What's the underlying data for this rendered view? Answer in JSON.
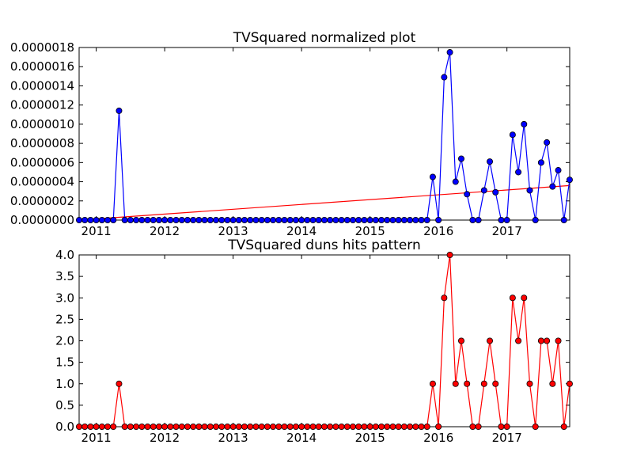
{
  "chart_data": [
    {
      "type": "line",
      "title": "TVSquared normalized plot",
      "xlabel": "",
      "ylabel": "",
      "x_tick_labels": [
        "2011",
        "2012",
        "2013",
        "2014",
        "2015",
        "2016",
        "2017"
      ],
      "x_tick_values": [
        2011,
        2012,
        2013,
        2014,
        2015,
        2016,
        2017
      ],
      "xlim": [
        2010.75,
        2017.917
      ],
      "y_tick_labels": [
        "0.0000000",
        "0.0000002",
        "0.0000004",
        "0.0000006",
        "0.0000008",
        "0.0000010",
        "0.0000012",
        "0.0000014",
        "0.0000016",
        "0.0000018"
      ],
      "y_tick_values": [
        0,
        2e-07,
        4e-07,
        6e-07,
        8e-07,
        1e-06,
        1.2e-06,
        1.4e-06,
        1.6e-06,
        1.8e-06
      ],
      "ylim": [
        0,
        1.8e-06
      ],
      "grid": false,
      "colors": {
        "series": "#0000ff",
        "trend": "#ff0000"
      },
      "series": [
        {
          "x_start": 2010.75,
          "x_step": 0.08333,
          "values": [
            0,
            0,
            0,
            0,
            0,
            0,
            0,
            1.14e-06,
            0,
            0,
            0,
            0,
            0,
            0,
            0,
            0,
            0,
            0,
            0,
            0,
            0,
            0,
            0,
            0,
            0,
            0,
            0,
            0,
            0,
            0,
            0,
            0,
            0,
            0,
            0,
            0,
            0,
            0,
            0,
            0,
            0,
            0,
            0,
            0,
            0,
            0,
            0,
            0,
            0,
            0,
            0,
            0,
            0,
            0,
            0,
            0,
            0,
            0,
            0,
            0,
            0,
            0,
            4.5e-07,
            0,
            1.49e-06,
            1.75e-06,
            4e-07,
            6.4e-07,
            2.7e-07,
            0,
            0,
            3.1e-07,
            6.1e-07,
            2.9e-07,
            0,
            0,
            8.9e-07,
            5e-07,
            1e-06,
            3.1e-07,
            0,
            6e-07,
            8.1e-07,
            3.5e-07,
            5.2e-07,
            0,
            4.2e-07
          ]
        }
      ],
      "trend_line": {
        "x": [
          2010.75,
          2017.917
        ],
        "y": [
          0,
          3.6e-07
        ]
      }
    },
    {
      "type": "line",
      "title": "TVSquared duns hits pattern",
      "xlabel": "",
      "ylabel": "",
      "x_tick_labels": [
        "2011",
        "2012",
        "2013",
        "2014",
        "2015",
        "2016",
        "2017"
      ],
      "x_tick_values": [
        2011,
        2012,
        2013,
        2014,
        2015,
        2016,
        2017
      ],
      "xlim": [
        2010.75,
        2017.917
      ],
      "y_tick_labels": [
        "0.0",
        "0.5",
        "1.0",
        "1.5",
        "2.0",
        "2.5",
        "3.0",
        "3.5",
        "4.0"
      ],
      "y_tick_values": [
        0,
        0.5,
        1,
        1.5,
        2,
        2.5,
        3,
        3.5,
        4
      ],
      "ylim": [
        0,
        4
      ],
      "grid": false,
      "colors": {
        "series": "#ff0000",
        "marker_fill": "#ff0000",
        "marker_edge": "#000000"
      },
      "series": [
        {
          "x_start": 2010.75,
          "x_step": 0.08333,
          "values": [
            0,
            0,
            0,
            0,
            0,
            0,
            0,
            1,
            0,
            0,
            0,
            0,
            0,
            0,
            0,
            0,
            0,
            0,
            0,
            0,
            0,
            0,
            0,
            0,
            0,
            0,
            0,
            0,
            0,
            0,
            0,
            0,
            0,
            0,
            0,
            0,
            0,
            0,
            0,
            0,
            0,
            0,
            0,
            0,
            0,
            0,
            0,
            0,
            0,
            0,
            0,
            0,
            0,
            0,
            0,
            0,
            0,
            0,
            0,
            0,
            0,
            0,
            1,
            0,
            3,
            4,
            1,
            2,
            1,
            0,
            0,
            1,
            2,
            1,
            0,
            0,
            3,
            2,
            3,
            1,
            0,
            2,
            2,
            1,
            2,
            0,
            1
          ]
        }
      ]
    }
  ]
}
